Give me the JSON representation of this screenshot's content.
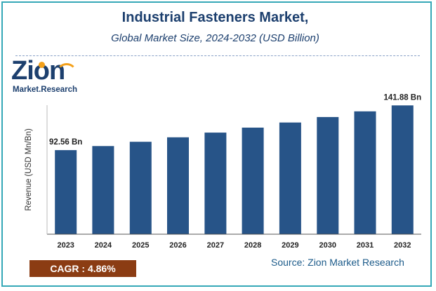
{
  "header": {
    "title": "Industrial Fasteners Market,",
    "subtitle": "Global Market Size, 2024-2032 (USD Billion)"
  },
  "logo": {
    "brand": "Zion",
    "sub": "Market.Research"
  },
  "chart_data": {
    "type": "bar",
    "categories": [
      "2023",
      "2024",
      "2025",
      "2026",
      "2027",
      "2028",
      "2029",
      "2030",
      "2031",
      "2032"
    ],
    "values": [
      92.56,
      97.06,
      101.78,
      106.72,
      111.91,
      117.35,
      123.05,
      129.03,
      135.3,
      141.88
    ],
    "data_labels": [
      {
        "index": 0,
        "text": "92.56 Bn"
      },
      {
        "index": 9,
        "text": "141.88 Bn"
      }
    ],
    "ylabel": "Revenue (USD Mn/Bn)",
    "xlabel": "",
    "ylim": [
      0,
      160
    ],
    "grid": false,
    "legend": "none",
    "bar_color": "#275488"
  },
  "footer": {
    "cagr": "CAGR :  4.86%",
    "source": "Source: Zion Market Research"
  },
  "colors": {
    "title": "#1c3f6e",
    "border": "#35a8b7",
    "cagr_bg": "#8b3c13",
    "source": "#1c5b8a"
  }
}
